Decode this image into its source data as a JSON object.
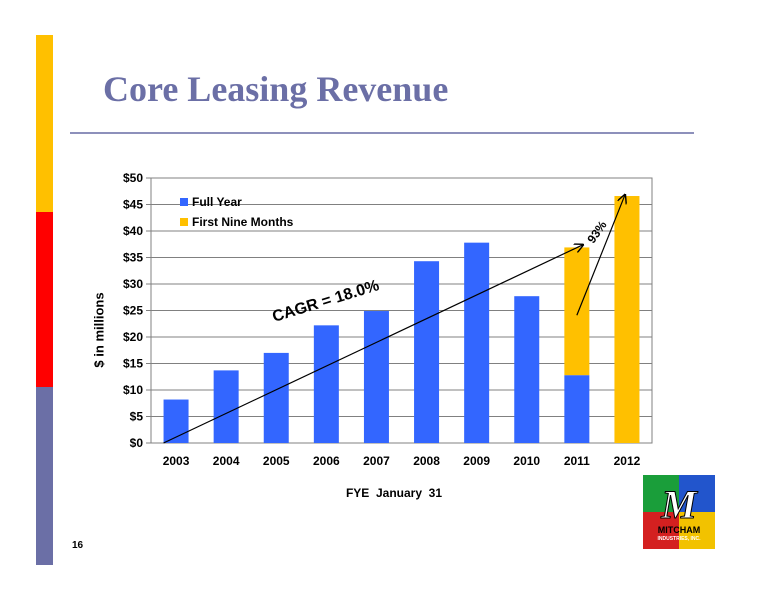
{
  "slide": {
    "title": "Core Leasing Revenue",
    "page_number": "16",
    "band_colors": [
      "#ffc000",
      "#ff0000",
      "#6b6fa6"
    ]
  },
  "chart_data": {
    "type": "bar",
    "categories": [
      "2003",
      "2004",
      "2005",
      "2006",
      "2007",
      "2008",
      "2009",
      "2010",
      "2011",
      "2012"
    ],
    "series": [
      {
        "name": "Full Year",
        "color": "#3366ff",
        "values": [
          8.2,
          13.7,
          17.0,
          22.2,
          24.9,
          34.3,
          37.8,
          27.7,
          12.8,
          null
        ]
      },
      {
        "name": "First Nine Months",
        "color": "#ffc000",
        "values": [
          null,
          null,
          null,
          null,
          null,
          null,
          null,
          null,
          24.1,
          46.6
        ]
      }
    ],
    "stacked": true,
    "xlabel": "FYE  January  31",
    "ylabel": "$ in millions",
    "ylim": [
      0,
      50
    ],
    "yticks": [
      "$0",
      "$5",
      "$10",
      "$15",
      "$20",
      "$25",
      "$30",
      "$35",
      "$40",
      "$45",
      "$50"
    ],
    "grid": true,
    "legend_position": "top-left",
    "annotations": [
      {
        "text": "CAGR = 18.0%",
        "arrow_from": [
          "2003",
          0
        ],
        "arrow_to": [
          "2011",
          37.4
        ]
      },
      {
        "text": "93%",
        "arrow_from": [
          "2011",
          24.1
        ],
        "arrow_to": [
          "2012",
          46.8
        ]
      }
    ]
  },
  "logo": {
    "lettering": "M",
    "name": "MITCHAM",
    "subtitle": "INDUSTRIES, INC.",
    "colors": [
      "#1a9e3a",
      "#2255cc",
      "#d42020",
      "#f2c200"
    ]
  }
}
